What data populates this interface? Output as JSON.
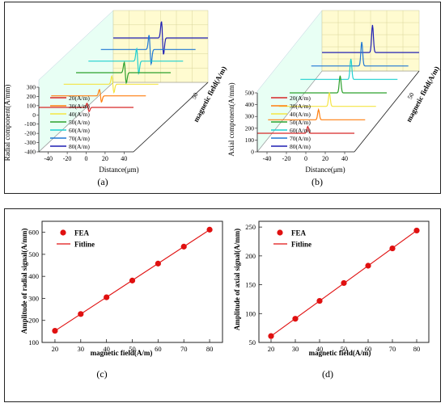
{
  "colors": {
    "20": "#d62728",
    "30": "#ff7f0e",
    "40": "#f4e542",
    "50": "#2ca02c",
    "60": "#1fd0d0",
    "70": "#1f77d4",
    "80": "#1f1fb4",
    "fea": "#e01010",
    "fit": "#e01010",
    "backwall": "#fffbd0",
    "sidewall": "#e8fff4"
  },
  "chart_data": [
    {
      "type": "line",
      "panel_label": "(a)",
      "xlabel": "Distance(μm)",
      "ylabel": "Radial component(A/mm)",
      "zlabel": "magnetic field(A/m)",
      "z_tick": "50",
      "xlim": [
        -50,
        50
      ],
      "x_ticks": [
        "-40",
        "-20",
        "0",
        "20",
        "40"
      ],
      "ylim": [
        -400,
        300
      ],
      "y_ticks": [
        "300",
        "200",
        "100",
        "0",
        "-100",
        "-200",
        "-300",
        "-400"
      ],
      "legend": [
        "20(A/m)",
        "30(A/m)",
        "40(A/m)",
        "50(A/m)",
        "60(A/m)",
        "70(A/m)",
        "80(A/m)"
      ],
      "series": [
        {
          "field": 20,
          "peak": 76
        },
        {
          "field": 30,
          "peak": 114
        },
        {
          "field": 40,
          "peak": 152
        },
        {
          "field": 50,
          "peak": 190
        },
        {
          "field": 60,
          "peak": 228
        },
        {
          "field": 70,
          "peak": 266
        },
        {
          "field": 80,
          "peak": 304
        }
      ]
    },
    {
      "type": "line",
      "panel_label": "(b)",
      "xlabel": "Distance(μm)",
      "ylabel": "Axial component(A/mm)",
      "zlabel": "magnetic field(A/m)",
      "z_tick": "50",
      "xlim": [
        -50,
        50
      ],
      "x_ticks": [
        "-40",
        "-20",
        "0",
        "20",
        "40"
      ],
      "ylim": [
        0,
        550
      ],
      "y_ticks": [
        "500",
        "400",
        "300",
        "200",
        "100",
        "0"
      ],
      "legend": [
        "20(A/m)",
        "30(A/m)",
        "40(A/m)",
        "50(A/m)",
        "60(A/m)",
        "70(A/m)",
        "80(A/m)"
      ],
      "series": [
        {
          "field": 20,
          "peak": 60
        },
        {
          "field": 30,
          "peak": 90
        },
        {
          "field": 40,
          "peak": 121
        },
        {
          "field": 50,
          "peak": 152
        },
        {
          "field": 60,
          "peak": 182
        },
        {
          "field": 70,
          "peak": 212
        },
        {
          "field": 80,
          "peak": 243
        }
      ]
    },
    {
      "type": "scatter",
      "panel_label": "(c)",
      "xlabel": "magnetic field(A/m)",
      "ylabel": "Amplitude of radial signal(A/mm)",
      "xlim": [
        15,
        85
      ],
      "ylim": [
        100,
        650
      ],
      "x_ticks": [
        20,
        30,
        40,
        50,
        60,
        70,
        80
      ],
      "y_ticks": [
        100,
        200,
        300,
        400,
        500,
        600
      ],
      "legend": [
        "FEA",
        "Fitline"
      ],
      "x": [
        20,
        30,
        40,
        50,
        60,
        70,
        80
      ],
      "y": [
        153,
        229,
        305,
        381,
        458,
        535,
        612
      ]
    },
    {
      "type": "scatter",
      "panel_label": "(d)",
      "xlabel": "magnetic field(A/m)",
      "ylabel": "Amplitude of axial signal(A/mm)",
      "xlim": [
        15,
        85
      ],
      "ylim": [
        50,
        260
      ],
      "x_ticks": [
        20,
        30,
        40,
        50,
        60,
        70,
        80
      ],
      "y_ticks": [
        50,
        100,
        150,
        200,
        250
      ],
      "legend": [
        "FEA",
        "Fitline"
      ],
      "x": [
        20,
        30,
        40,
        50,
        60,
        70,
        80
      ],
      "y": [
        61,
        91,
        122,
        153,
        183,
        213,
        244
      ]
    }
  ]
}
